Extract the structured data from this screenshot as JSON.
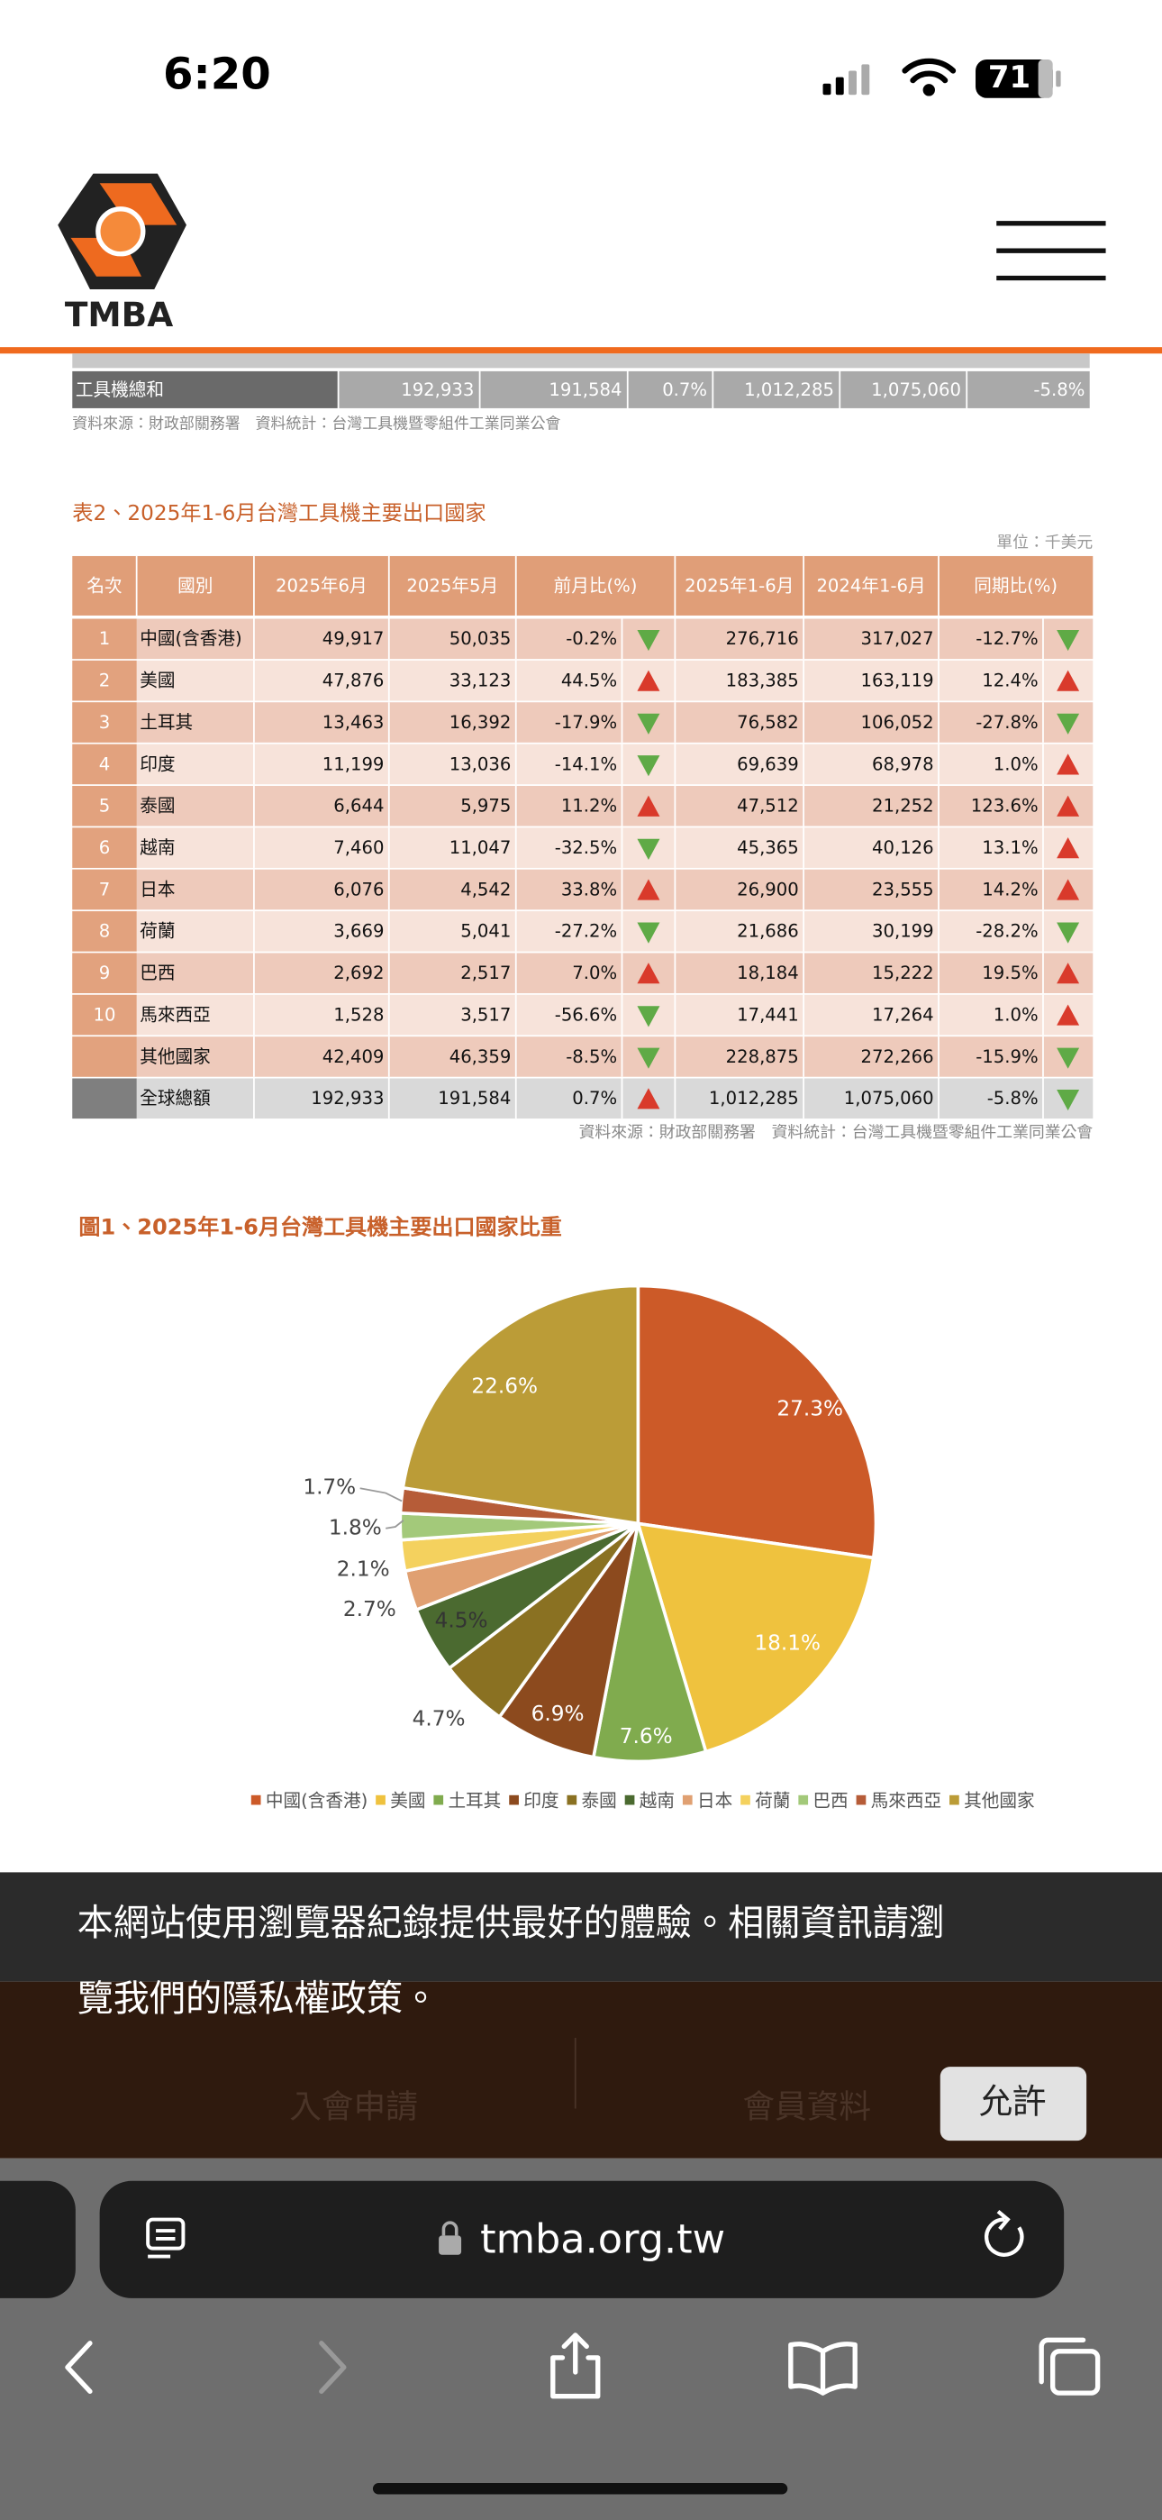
{
  "status_bar": {
    "time": "6:20",
    "battery": "71"
  },
  "header": {
    "logo": "TMBA"
  },
  "prev_table": {
    "label": "工具機總和",
    "cells": [
      "192,933",
      "191,584",
      "0.7%",
      "1,012,285",
      "1,075,060",
      "-5.8%"
    ],
    "source": "資料來源：財政部關務署　資料統計：台灣工具機暨零組件工業同業公會"
  },
  "table": {
    "title": "表2、2025年1-6月台灣工具機主要出口國家",
    "unit": "單位：千美元",
    "headers": [
      "名次",
      "國別",
      "2025年6月",
      "2025年5月",
      "前月比(%)",
      "2025年1-6月",
      "2024年1-6月",
      "同期比(%)"
    ],
    "rows": [
      [
        "1",
        "中國(含香港)",
        "49,917",
        "50,035",
        "-0.2%",
        "276,716",
        "317,027",
        "-12.7%"
      ],
      [
        "2",
        "美國",
        "47,876",
        "33,123",
        "44.5%",
        "183,385",
        "163,119",
        "12.4%"
      ],
      [
        "3",
        "土耳其",
        "13,463",
        "16,392",
        "-17.9%",
        "76,582",
        "106,052",
        "-27.8%"
      ],
      [
        "4",
        "印度",
        "11,199",
        "13,036",
        "-14.1%",
        "69,639",
        "68,978",
        "1.0%"
      ],
      [
        "5",
        "泰國",
        "6,644",
        "5,975",
        "11.2%",
        "47,512",
        "21,252",
        "123.6%"
      ],
      [
        "6",
        "越南",
        "7,460",
        "11,047",
        "-32.5%",
        "45,365",
        "40,126",
        "13.1%"
      ],
      [
        "7",
        "日本",
        "6,076",
        "4,542",
        "33.8%",
        "26,900",
        "23,555",
        "14.2%"
      ],
      [
        "8",
        "荷蘭",
        "3,669",
        "5,041",
        "-27.2%",
        "21,686",
        "30,199",
        "-28.2%"
      ],
      [
        "9",
        "巴西",
        "2,692",
        "2,517",
        "7.0%",
        "18,184",
        "15,222",
        "19.5%"
      ],
      [
        "10",
        "馬來西亞",
        "1,528",
        "3,517",
        "-56.6%",
        "17,441",
        "17,264",
        "1.0%"
      ],
      [
        null,
        "其他國家",
        "42,409",
        "46,359",
        "-8.5%",
        "228,875",
        "272,266",
        "-15.9%"
      ],
      [
        null,
        "全球總額",
        "192,933",
        "191,584",
        "0.7%",
        "1,012,285",
        "1,075,060",
        "-5.8%"
      ]
    ],
    "source": "資料來源：財政部關務署　資料統計：台灣工具機暨零組件工業同業公會"
  },
  "chart_data": {
    "type": "pie",
    "title": "圖1、2025年1-6月台灣工具機主要出口國家比重",
    "categories": [
      "中國(含香港)",
      "美國",
      "土耳其",
      "印度",
      "泰國",
      "越南",
      "日本",
      "荷蘭",
      "巴西",
      "馬來西亞",
      "其他國家"
    ],
    "values": [
      27.3,
      18.1,
      7.6,
      6.9,
      4.7,
      4.5,
      2.7,
      2.1,
      1.8,
      1.7,
      22.6
    ],
    "value_labels": [
      "27.3%",
      "18.1%",
      "7.6%",
      "6.9%",
      "4.7%",
      "4.5%",
      "2.7%",
      "2.1%",
      "1.8%",
      "1.7%",
      "22.6%"
    ],
    "colors": [
      "#cc5a28",
      "#efc23e",
      "#80ab4e",
      "#8c4a1e",
      "#8a7122",
      "#4b6a30",
      "#e0a072",
      "#f4d15e",
      "#a3c97a",
      "#b65c38",
      "#bb9c37"
    ],
    "legend": "bottom"
  },
  "cookie_banner": {
    "text_lines": [
      "本網站使用瀏覽器紀錄提供最好的體驗。相關資訊請瀏",
      "覽我們的隱私權政策。"
    ],
    "button": "允許",
    "behind": [
      "入會申請",
      "會員資料"
    ]
  },
  "browser": {
    "url": "tmba.org.tw"
  }
}
